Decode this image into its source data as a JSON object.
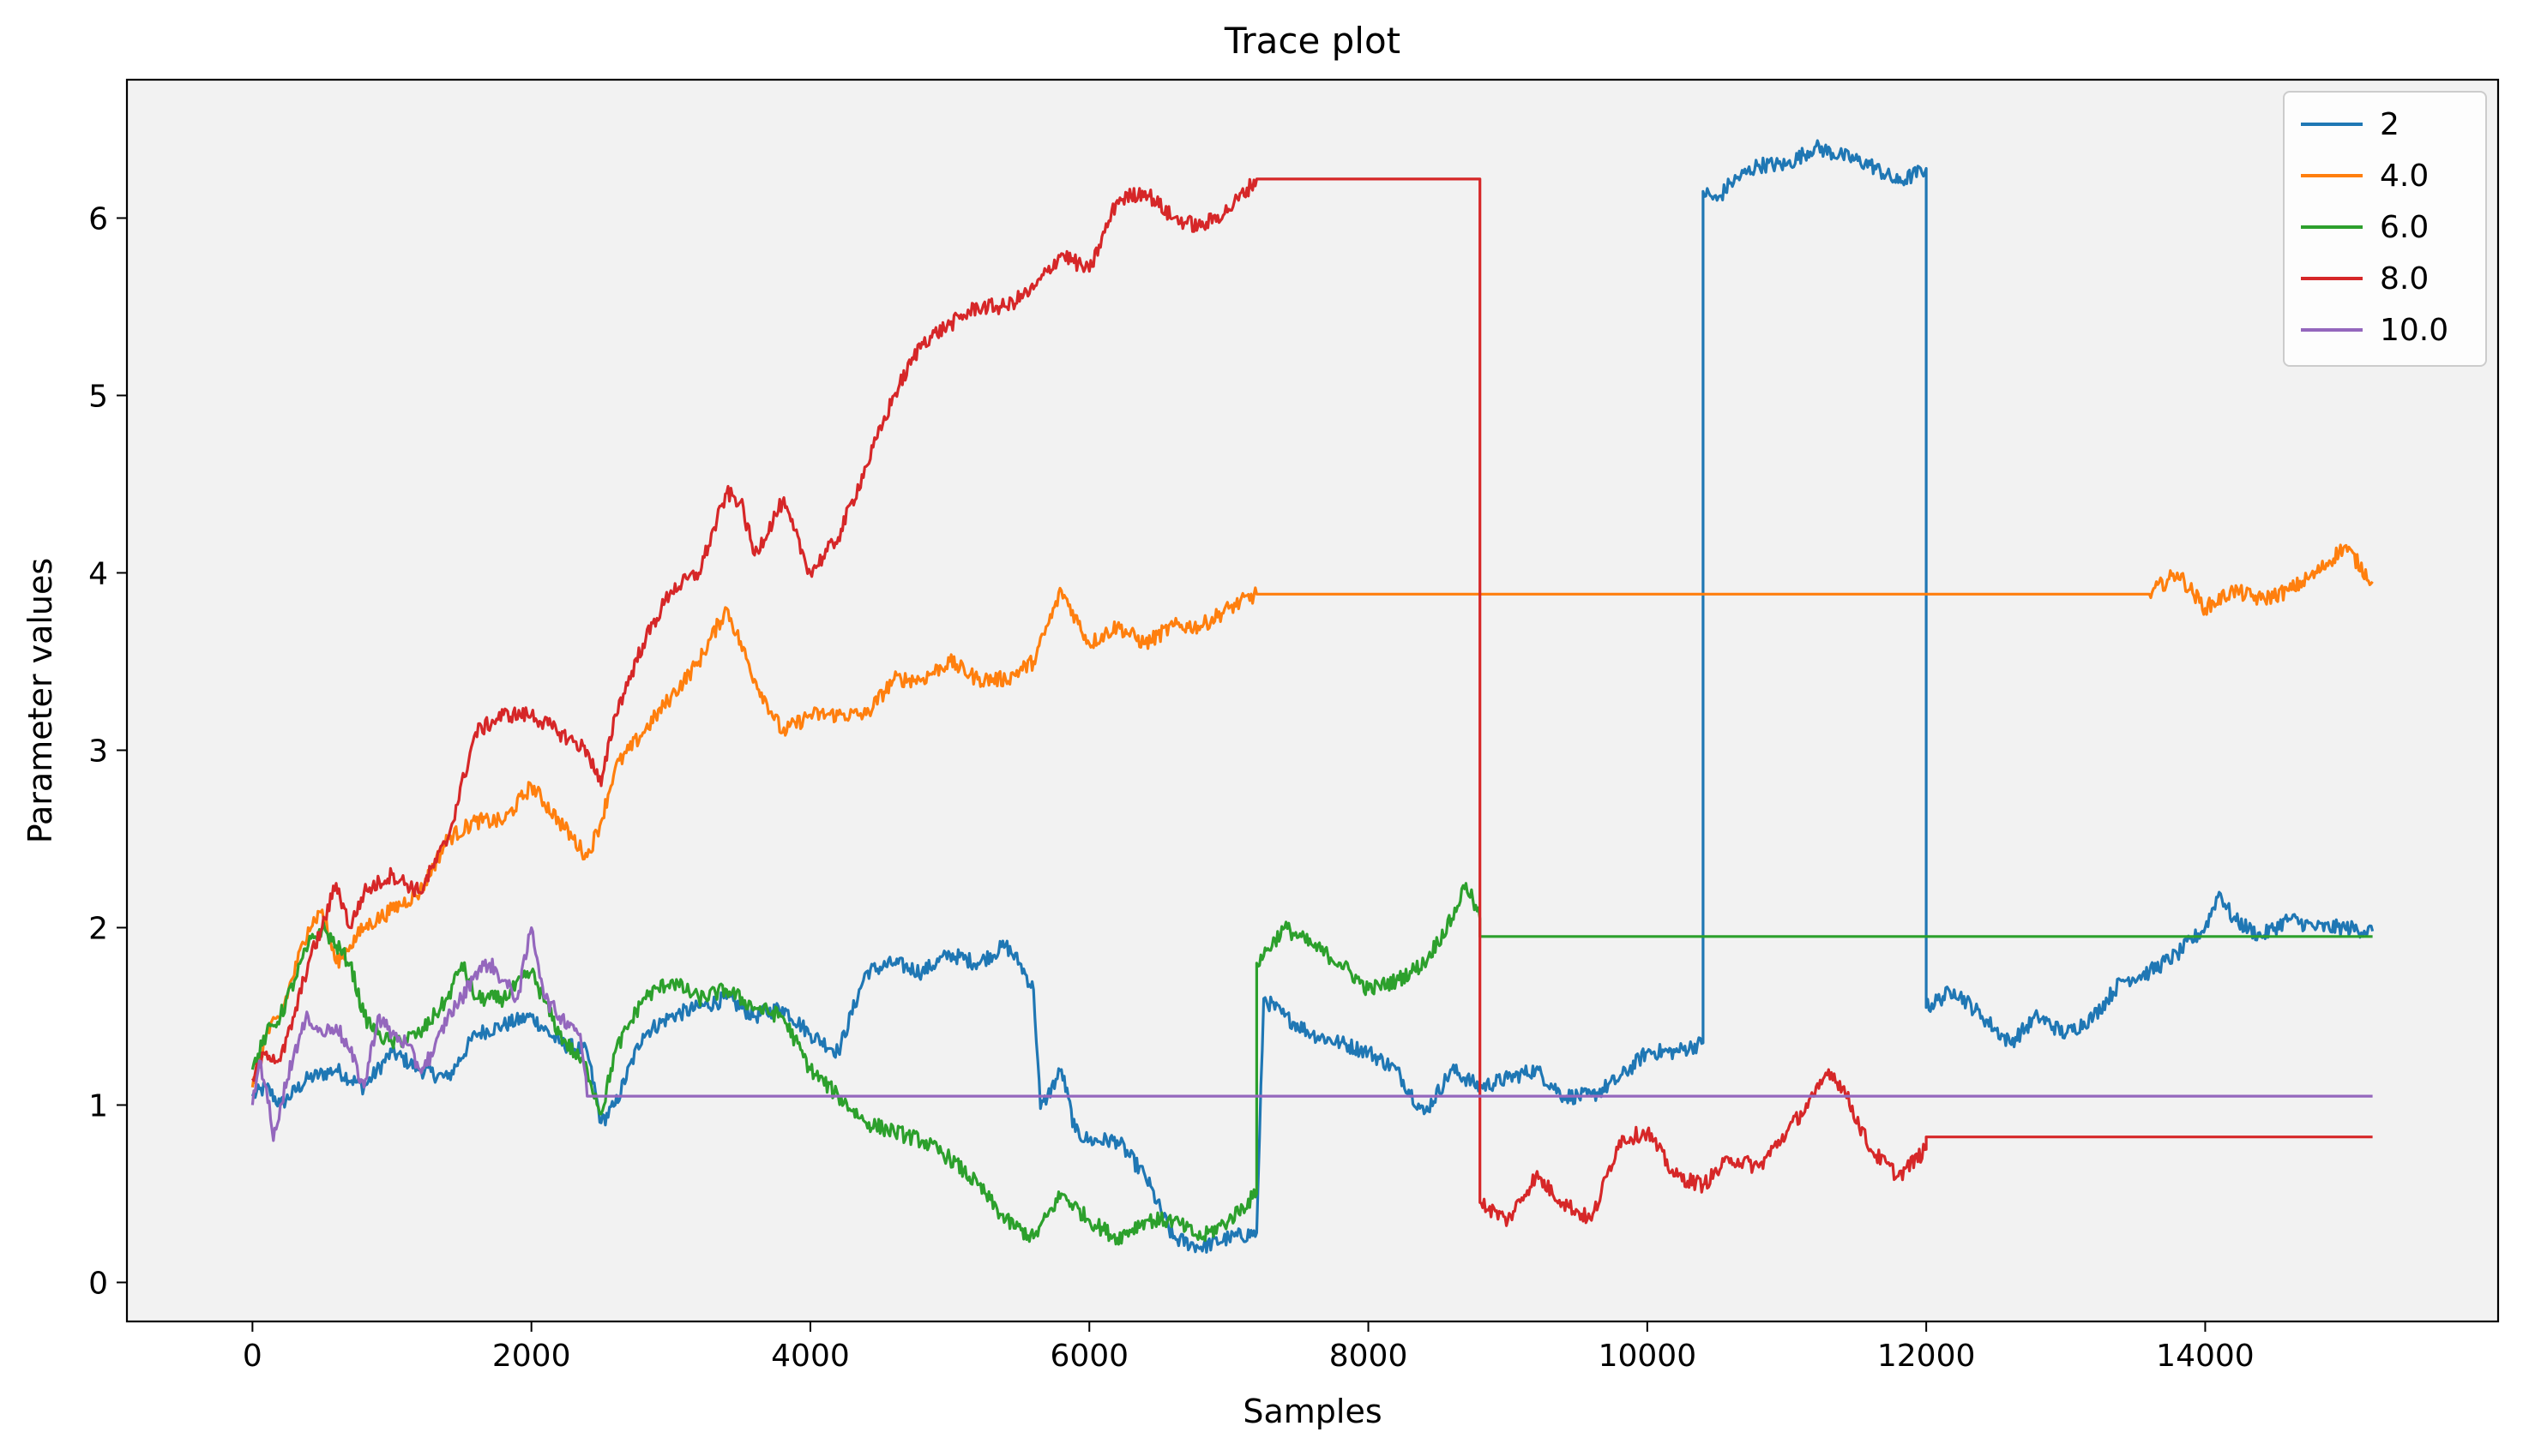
{
  "chart_data": {
    "type": "line",
    "title": "Trace plot",
    "xlabel": "Samples",
    "ylabel": "Parameter values",
    "xlim": [
      -900,
      16100
    ],
    "ylim": [
      -0.22,
      6.78
    ],
    "xticks": [
      0,
      2000,
      4000,
      6000,
      8000,
      10000,
      12000,
      14000
    ],
    "xtick_labels": [
      "0",
      "2000",
      "4000",
      "6000",
      "8000",
      "10000",
      "12000",
      "14000"
    ],
    "yticks": [
      0,
      1,
      2,
      3,
      4,
      5,
      6
    ],
    "ytick_labels": [
      "0",
      "1",
      "2",
      "3",
      "4",
      "5",
      "6"
    ],
    "grid": false,
    "legend_position": "top-right",
    "series": [
      {
        "name": "2",
        "color": "#1f77b4",
        "x": [
          0,
          100,
          200,
          400,
          600,
          800,
          1000,
          1200,
          1400,
          1600,
          1800,
          2000,
          2200,
          2400,
          2500,
          2600,
          2800,
          3000,
          3200,
          3400,
          3600,
          3800,
          4000,
          4200,
          4400,
          4600,
          4800,
          5000,
          5200,
          5400,
          5500,
          5600,
          5650,
          5700,
          5800,
          5900,
          6000,
          6200,
          6400,
          6600,
          6800,
          7000,
          7200,
          7250,
          7400,
          7600,
          7800,
          8000,
          8200,
          8400,
          8600,
          8800,
          9000,
          9200,
          9400,
          9600,
          9800,
          10000,
          10200,
          10400,
          10400,
          10500,
          10600,
          10800,
          11000,
          11200,
          11400,
          11600,
          11800,
          12000,
          12000,
          12200,
          12400,
          12600,
          12800,
          13000,
          13200,
          13400,
          13600,
          13800,
          14000,
          14100,
          14200,
          14400,
          14600,
          14800,
          15000,
          15200
        ],
        "y": [
          1.05,
          1.1,
          1.0,
          1.15,
          1.2,
          1.1,
          1.3,
          1.2,
          1.15,
          1.4,
          1.45,
          1.5,
          1.35,
          1.3,
          0.9,
          1.0,
          1.4,
          1.5,
          1.55,
          1.6,
          1.5,
          1.55,
          1.4,
          1.3,
          1.75,
          1.8,
          1.75,
          1.85,
          1.8,
          1.9,
          1.8,
          1.65,
          0.98,
          1.05,
          1.2,
          0.85,
          0.8,
          0.8,
          0.6,
          0.25,
          0.2,
          0.25,
          0.28,
          1.6,
          1.5,
          1.4,
          1.35,
          1.3,
          1.2,
          0.95,
          1.2,
          1.1,
          1.15,
          1.2,
          1.05,
          1.05,
          1.15,
          1.3,
          1.3,
          1.35,
          6.15,
          6.1,
          6.2,
          6.3,
          6.3,
          6.4,
          6.35,
          6.3,
          6.2,
          6.28,
          1.55,
          1.65,
          1.5,
          1.35,
          1.5,
          1.4,
          1.5,
          1.7,
          1.75,
          1.85,
          2.0,
          2.2,
          2.05,
          1.95,
          2.05,
          2.0,
          2.0,
          1.98
        ]
      },
      {
        "name": "4.0",
        "color": "#ff7f0e",
        "x": [
          0,
          100,
          200,
          400,
          500,
          600,
          700,
          800,
          1000,
          1200,
          1400,
          1600,
          1800,
          2000,
          2200,
          2400,
          2500,
          2600,
          2800,
          3000,
          3200,
          3400,
          3600,
          3800,
          4000,
          4200,
          4400,
          4600,
          4800,
          5000,
          5200,
          5400,
          5600,
          5800,
          6000,
          6200,
          6400,
          6600,
          6800,
          7000,
          7200,
          13600,
          13800,
          14000,
          14200,
          14400,
          14600,
          14800,
          15000,
          15200
        ],
        "y": [
          1.1,
          1.4,
          1.5,
          2.0,
          2.1,
          1.8,
          1.9,
          2.0,
          2.1,
          2.2,
          2.5,
          2.6,
          2.6,
          2.8,
          2.6,
          2.4,
          2.6,
          2.9,
          3.1,
          3.3,
          3.5,
          3.8,
          3.4,
          3.1,
          3.2,
          3.2,
          3.2,
          3.4,
          3.4,
          3.5,
          3.4,
          3.4,
          3.5,
          3.9,
          3.6,
          3.7,
          3.6,
          3.7,
          3.7,
          3.8,
          3.88,
          3.88,
          4.0,
          3.8,
          3.9,
          3.85,
          3.9,
          4.0,
          4.15,
          3.95
        ]
      },
      {
        "name": "6.0",
        "color": "#2ca02c",
        "x": [
          0,
          100,
          200,
          300,
          400,
          500,
          600,
          700,
          800,
          900,
          1000,
          1200,
          1400,
          1500,
          1600,
          1800,
          2000,
          2200,
          2400,
          2500,
          2600,
          2800,
          3000,
          3200,
          3400,
          3600,
          3800,
          4000,
          4200,
          4400,
          4600,
          4800,
          5000,
          5200,
          5400,
          5600,
          5800,
          6000,
          6200,
          6400,
          6600,
          6800,
          7000,
          7200,
          7200,
          7400,
          7600,
          7800,
          8000,
          8200,
          8400,
          8600,
          8700,
          8800,
          8800,
          15200
        ],
        "y": [
          1.2,
          1.4,
          1.5,
          1.7,
          1.9,
          2.0,
          1.9,
          1.8,
          1.5,
          1.4,
          1.35,
          1.4,
          1.6,
          1.8,
          1.6,
          1.6,
          1.75,
          1.4,
          1.2,
          0.95,
          1.3,
          1.6,
          1.7,
          1.6,
          1.65,
          1.55,
          1.5,
          1.2,
          1.05,
          0.9,
          0.85,
          0.8,
          0.7,
          0.55,
          0.35,
          0.25,
          0.5,
          0.35,
          0.25,
          0.35,
          0.35,
          0.25,
          0.35,
          0.5,
          1.8,
          2.0,
          1.9,
          1.8,
          1.65,
          1.7,
          1.8,
          2.05,
          2.25,
          2.05,
          1.95,
          1.95
        ]
      },
      {
        "name": "8.0",
        "color": "#d62728",
        "x": [
          0,
          100,
          200,
          300,
          400,
          500,
          600,
          700,
          800,
          1000,
          1200,
          1400,
          1600,
          1800,
          2000,
          2200,
          2400,
          2500,
          2600,
          2800,
          3000,
          3200,
          3400,
          3500,
          3600,
          3800,
          4000,
          4200,
          4400,
          4600,
          4800,
          5000,
          5200,
          5400,
          5600,
          5800,
          6000,
          6200,
          6400,
          6600,
          6800,
          7000,
          7200,
          8800,
          8800,
          9000,
          9200,
          9400,
          9600,
          9800,
          10000,
          10200,
          10400,
          10600,
          10800,
          11000,
          11200,
          11300,
          11400,
          11600,
          11800,
          12000,
          12000,
          15200
        ],
        "y": [
          1.15,
          1.3,
          1.25,
          1.5,
          1.8,
          2.0,
          2.25,
          2.0,
          2.2,
          2.3,
          2.2,
          2.5,
          3.1,
          3.2,
          3.2,
          3.1,
          3.0,
          2.8,
          3.2,
          3.6,
          3.9,
          4.0,
          4.45,
          4.4,
          4.1,
          4.4,
          4.0,
          4.2,
          4.6,
          5.0,
          5.3,
          5.4,
          5.5,
          5.5,
          5.6,
          5.8,
          5.7,
          6.1,
          6.15,
          6.0,
          5.95,
          6.05,
          6.22,
          6.22,
          0.45,
          0.35,
          0.6,
          0.45,
          0.35,
          0.8,
          0.85,
          0.6,
          0.55,
          0.7,
          0.65,
          0.85,
          1.05,
          1.2,
          1.1,
          0.75,
          0.6,
          0.75,
          0.82,
          0.82
        ]
      },
      {
        "name": "10.0",
        "color": "#9467bd",
        "x": [
          0,
          50,
          100,
          150,
          200,
          300,
          400,
          500,
          600,
          700,
          800,
          900,
          1000,
          1100,
          1200,
          1300,
          1400,
          1500,
          1600,
          1700,
          1800,
          1900,
          2000,
          2100,
          2200,
          2300,
          2350,
          2400,
          15200
        ],
        "y": [
          1.0,
          1.25,
          1.1,
          0.8,
          1.0,
          1.3,
          1.5,
          1.4,
          1.45,
          1.3,
          1.1,
          1.5,
          1.4,
          1.35,
          1.2,
          1.3,
          1.5,
          1.6,
          1.75,
          1.8,
          1.7,
          1.6,
          2.0,
          1.6,
          1.5,
          1.45,
          1.4,
          1.05,
          1.05
        ]
      }
    ]
  }
}
